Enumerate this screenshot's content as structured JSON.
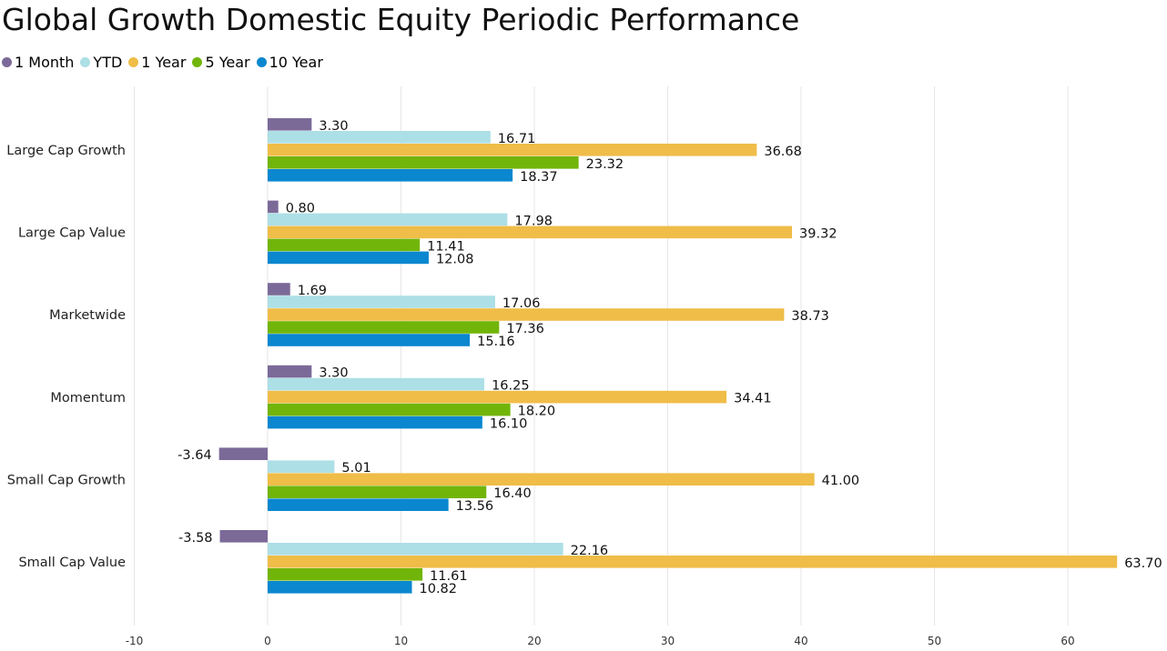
{
  "chart_data": {
    "type": "bar",
    "orientation": "horizontal",
    "title": "Global Growth Domestic Equity Periodic Performance",
    "categories": [
      "Large Cap Growth",
      "Large Cap Value",
      "Marketwide",
      "Momentum",
      "Small Cap Growth",
      "Small Cap Value"
    ],
    "series": [
      {
        "name": "1 Month",
        "color": "#7b6a98",
        "values": [
          3.3,
          0.8,
          1.69,
          3.3,
          -3.64,
          -3.58
        ]
      },
      {
        "name": "YTD",
        "color": "#addfe6",
        "values": [
          16.71,
          17.98,
          17.06,
          16.25,
          5.01,
          22.16
        ]
      },
      {
        "name": "1 Year",
        "color": "#efbd48",
        "values": [
          36.68,
          39.32,
          38.73,
          34.41,
          41.0,
          63.7
        ]
      },
      {
        "name": "5 Year",
        "color": "#72b50a",
        "values": [
          23.32,
          11.41,
          17.36,
          18.2,
          16.4,
          11.61
        ]
      },
      {
        "name": "10 Year",
        "color": "#0a87cf",
        "values": [
          18.37,
          12.08,
          15.16,
          16.1,
          13.56,
          10.82
        ]
      }
    ],
    "xlim": [
      -10,
      67
    ],
    "xticks": [
      "-10",
      "0",
      "10",
      "20",
      "30",
      "40",
      "50",
      "60"
    ],
    "data_labels": true,
    "grid": true,
    "legend_position": "top-left"
  }
}
